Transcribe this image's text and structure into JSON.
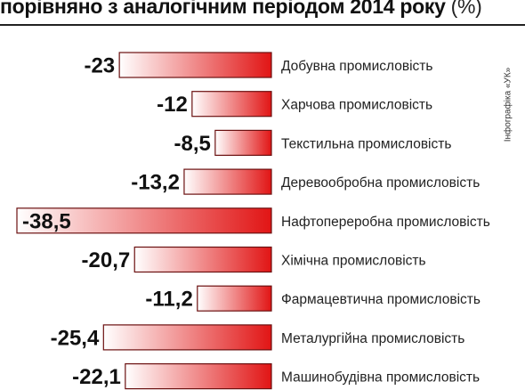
{
  "title": "порівняно з аналогічним періодом 2014 року",
  "unit": "(%)",
  "credit": "Інфографіка «УК»",
  "colors": {
    "bar_start": "#ffffff",
    "bar_end": "#e11515",
    "bar_border": "#6b1010"
  },
  "chart_data": {
    "type": "bar",
    "orientation": "horizontal",
    "title": "порівняно з аналогічним періодом 2014 року",
    "unit": "(%)",
    "xlim": [
      -38.5,
      0
    ],
    "categories": [
      "Добувна промисловість",
      "Харчова промисловість",
      "Текстильна промисловість",
      "Деревообробна промисловість",
      "Нафтопереробна промисловість",
      "Хімічна промисловість",
      "Фармацевтична промисловість",
      "Металургійна промисловість",
      "Машинобудівна промисловість"
    ],
    "values": [
      -23,
      -12,
      -8.5,
      -13.2,
      -38.5,
      -20.7,
      -11.2,
      -25.4,
      -22.1
    ],
    "value_labels": [
      "-23",
      "-12",
      "-8,5",
      "-13,2",
      "-38,5",
      "-20,7",
      "-11,2",
      "-25,4",
      "-22,1"
    ]
  }
}
